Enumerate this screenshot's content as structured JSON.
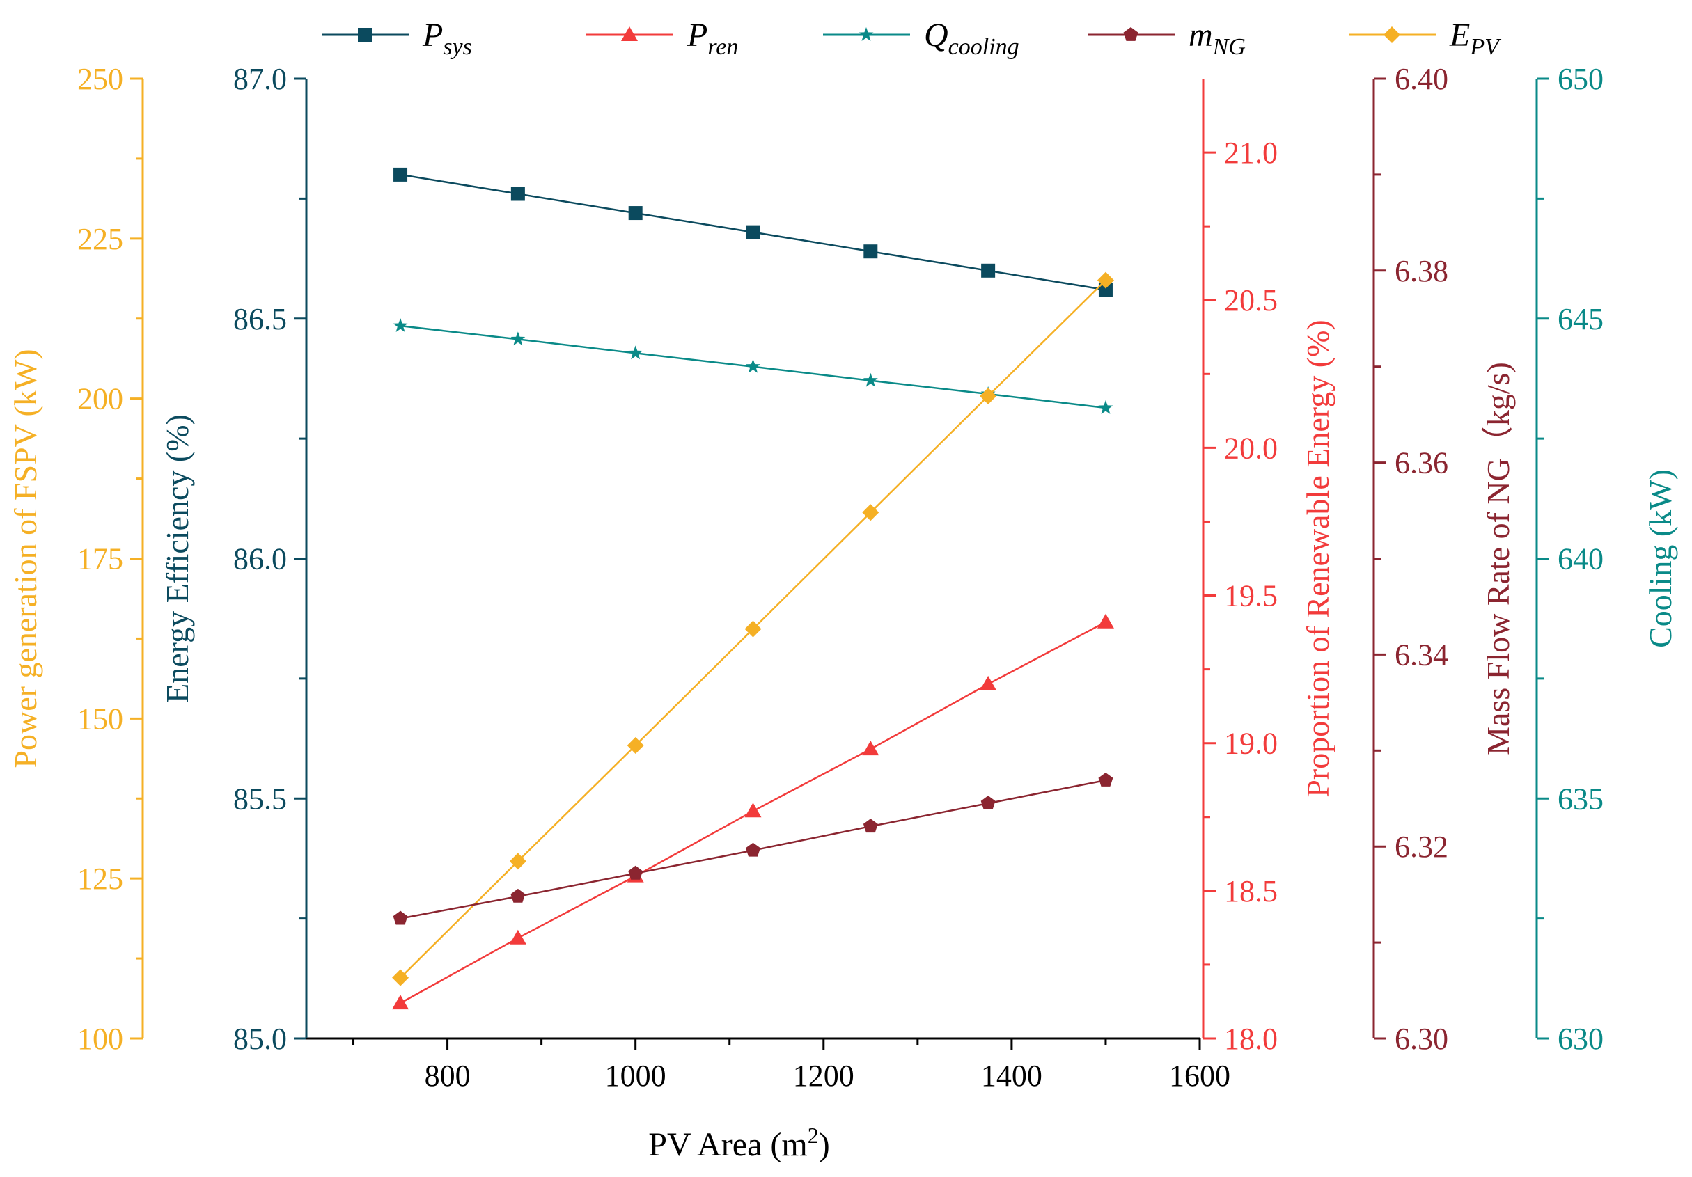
{
  "chart_data": {
    "type": "line",
    "x": [
      750,
      875,
      1000,
      1125,
      1250,
      1375,
      1500
    ],
    "xlabel": {
      "base": "PV Area (m",
      "sup": "2",
      "tail": ")"
    },
    "xlim": [
      650,
      1600
    ],
    "xticks": [
      800,
      1000,
      1200,
      1400,
      1600
    ],
    "xticks_minor": [
      700,
      900,
      1100,
      1300,
      1500
    ],
    "axes": [
      {
        "id": "energy",
        "label": "Energy Efficiency (%)",
        "color": "#0b4a5e",
        "ylim": [
          85.0,
          87.0
        ],
        "ticks": [
          85.0,
          85.5,
          86.0,
          86.5,
          87.0
        ],
        "tick_labels": [
          "85.0",
          "85.5",
          "86.0",
          "86.5",
          "87.0"
        ],
        "minor": [
          85.25,
          85.75,
          86.25,
          86.75
        ]
      },
      {
        "id": "fspv",
        "label": "Power generation of FSPV (kW)",
        "color": "#f5b025",
        "ylim": [
          100,
          250
        ],
        "ticks": [
          100,
          125,
          150,
          175,
          200,
          225,
          250
        ],
        "tick_labels": [
          "100",
          "125",
          "150",
          "175",
          "200",
          "225",
          "250"
        ],
        "minor": [
          112.5,
          137.5,
          162.5,
          187.5,
          212.5,
          237.5
        ]
      },
      {
        "id": "renew",
        "label": "Proportion of Renewable Energy (%)",
        "color": "#f23b3b",
        "ylim": [
          18.0,
          21.25
        ],
        "ticks": [
          18.0,
          18.5,
          19.0,
          19.5,
          20.0,
          20.5,
          21.0
        ],
        "tick_labels": [
          "18.0",
          "18.5",
          "19.0",
          "19.5",
          "20.0",
          "20.5",
          "21.0"
        ],
        "minor": [
          18.25,
          18.75,
          19.25,
          19.75,
          20.25,
          20.75
        ]
      },
      {
        "id": "ng",
        "label": "Mass Flow Rate of NG（kg/s)",
        "color": "#8b2530",
        "ylim": [
          6.3,
          6.4
        ],
        "ticks": [
          6.3,
          6.32,
          6.34,
          6.36,
          6.38,
          6.4
        ],
        "tick_labels": [
          "6.30",
          "6.32",
          "6.34",
          "6.36",
          "6.38",
          "6.40"
        ],
        "minor": [
          6.31,
          6.33,
          6.35,
          6.37,
          6.39
        ]
      },
      {
        "id": "cool",
        "label": "Cooling (kW)",
        "color": "#0a8a88",
        "ylim": [
          630,
          650
        ],
        "ticks": [
          630,
          635,
          640,
          645,
          650
        ],
        "tick_labels": [
          "630",
          "635",
          "640",
          "645",
          "650"
        ],
        "minor": [
          632.5,
          637.5,
          642.5,
          647.5
        ]
      }
    ],
    "series": [
      {
        "id": "psys",
        "name": "P",
        "sub": "sys",
        "axis": "energy",
        "color": "#0b4a5e",
        "marker": "square",
        "values": [
          86.8,
          86.76,
          86.72,
          86.68,
          86.64,
          86.6,
          86.56
        ]
      },
      {
        "id": "qcool",
        "name": "Q",
        "sub": "cooling",
        "axis": "cool",
        "color": "#0a8a88",
        "marker": "star",
        "values": [
          644.85,
          644.57,
          644.28,
          644.0,
          643.71,
          643.43,
          643.14
        ]
      },
      {
        "id": "epv",
        "name": "E",
        "sub": "PV",
        "axis": "fspv",
        "color": "#f5b025",
        "marker": "diamond",
        "values": [
          109.5,
          127.7,
          145.8,
          164.0,
          182.2,
          200.4,
          218.5
        ]
      },
      {
        "id": "pren",
        "name": "P",
        "sub": "ren",
        "axis": "renew",
        "color": "#f23b3b",
        "marker": "triangle",
        "values": [
          18.12,
          18.34,
          18.55,
          18.77,
          18.98,
          19.2,
          19.41
        ]
      },
      {
        "id": "mng",
        "name": "m",
        "sub": "NG",
        "axis": "ng",
        "color": "#8b2530",
        "marker": "pentagon",
        "values": [
          6.3125,
          6.3148,
          6.3172,
          6.3196,
          6.3221,
          6.3245,
          6.3269
        ]
      }
    ],
    "legend": {
      "position": "top",
      "order": [
        "psys",
        "pren",
        "qcool",
        "mng",
        "epv"
      ]
    }
  }
}
